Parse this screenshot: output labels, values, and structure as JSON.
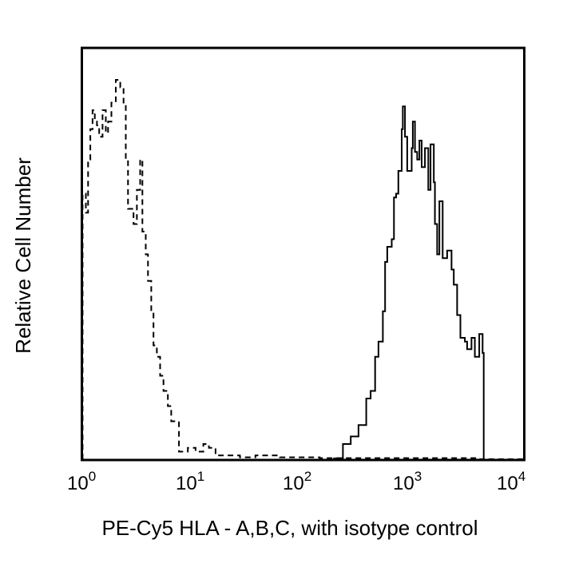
{
  "chart_data": {
    "type": "line",
    "subtype": "flow-cytometry-histogram-overlay",
    "title": "",
    "xlabel": "PE-Cy5 HLA - A,B,C, with isotype control",
    "ylabel": "Relative Cell Number",
    "x_scale": "log",
    "xlim": [
      1,
      10000
    ],
    "ylim": [
      0,
      100
    ],
    "grid": false,
    "legend": null,
    "x_ticks": [
      {
        "base": "10",
        "exp": "0",
        "value": 1
      },
      {
        "base": "10",
        "exp": "1",
        "value": 10
      },
      {
        "base": "10",
        "exp": "2",
        "value": 100
      },
      {
        "base": "10",
        "exp": "3",
        "value": 1000
      },
      {
        "base": "10",
        "exp": "4",
        "value": 10000
      }
    ],
    "series": [
      {
        "name": "isotype control",
        "style": "dashed",
        "color": "#000000",
        "log10_x": [
          0.01,
          0.04,
          0.06,
          0.08,
          0.1,
          0.12,
          0.14,
          0.16,
          0.19,
          0.22,
          0.24,
          0.27,
          0.31,
          0.35,
          0.38,
          0.4,
          0.42,
          0.47,
          0.5,
          0.53,
          0.55,
          0.58,
          0.6,
          0.63,
          0.65,
          0.68,
          0.71,
          0.74,
          0.78,
          0.81,
          0.88,
          0.96,
          1.03,
          1.1,
          1.15,
          1.21,
          1.28,
          1.43,
          1.57,
          1.79,
          2.15,
          2.51,
          2.87,
          3.59
        ],
        "values": [
          70,
          65,
          79,
          87,
          92,
          89,
          88,
          85,
          92,
          86,
          89,
          94,
          100,
          98,
          94,
          79,
          66,
          62,
          71,
          79,
          60,
          54,
          47,
          39,
          30,
          27,
          22,
          18,
          14,
          10,
          2,
          3,
          2,
          4,
          3,
          1,
          1,
          0.5,
          1,
          0.5,
          0.3,
          0.3,
          0.3,
          0
        ]
      },
      {
        "name": "PE-Cy5 HLA-A,B,C",
        "style": "solid",
        "color": "#000000",
        "log10_x": [
          2.28,
          2.36,
          2.43,
          2.5,
          2.57,
          2.61,
          2.65,
          2.68,
          2.72,
          2.74,
          2.76,
          2.8,
          2.82,
          2.84,
          2.86,
          2.89,
          2.9,
          2.92,
          2.94,
          2.98,
          2.99,
          3.01,
          3.03,
          3.05,
          3.07,
          3.1,
          3.13,
          3.15,
          3.18,
          3.19,
          3.21,
          3.23,
          3.26,
          3.3,
          3.34,
          3.36,
          3.39,
          3.42,
          3.46,
          3.48,
          3.52,
          3.55,
          3.59,
          3.62,
          3.63
        ],
        "values": [
          0.2,
          4,
          6,
          9,
          16,
          18,
          27,
          31,
          39,
          52,
          56,
          58,
          69,
          70,
          76,
          87,
          93,
          85,
          76,
          82,
          89,
          81,
          79,
          84,
          77,
          82,
          71,
          83,
          73,
          62,
          54,
          68,
          53,
          55,
          50,
          46,
          38,
          32,
          31,
          29,
          32,
          27,
          33,
          28,
          0
        ]
      }
    ]
  },
  "axes": {
    "x_title": "PE-Cy5 HLA - A,B,C, with isotype control",
    "y_title": "Relative Cell Number",
    "tick_base": [
      "10",
      "10",
      "10",
      "10",
      "10"
    ],
    "tick_exp": [
      "0",
      "1",
      "2",
      "3",
      "4"
    ]
  }
}
